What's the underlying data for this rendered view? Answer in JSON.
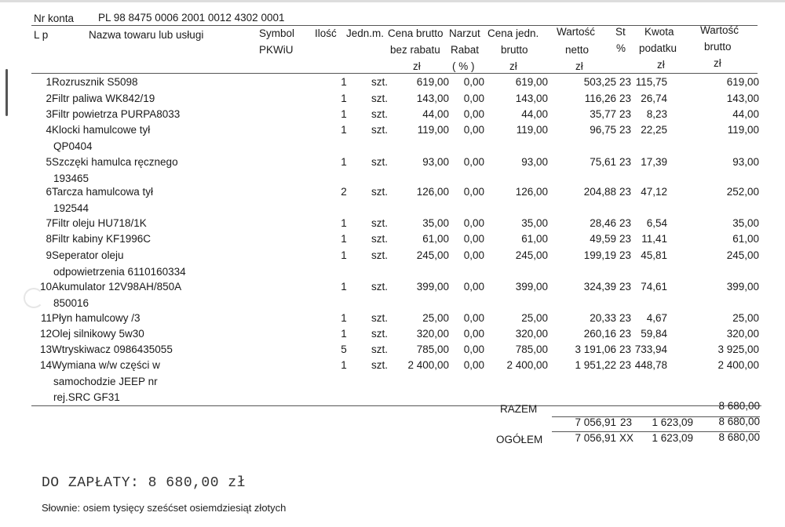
{
  "account": {
    "label": "Nr konta",
    "number": "PL 98 8475 0006 2001 0012 4302 0001"
  },
  "headers": {
    "lp": "L p",
    "name": "Nazwa towaru lub usługi",
    "symbol": [
      "Symbol",
      "PKWiU"
    ],
    "qty": "Ilość",
    "unit": "Jedn.m.",
    "gross_price": [
      "Cena brutto",
      "bez rabatu",
      "zł"
    ],
    "markup": [
      "Narzut",
      "Rabat",
      "( % )"
    ],
    "unit_price": [
      "Cena jedn.",
      "brutto",
      "zł"
    ],
    "net_value": [
      "Wartość",
      "netto",
      "zł"
    ],
    "vat_rate": [
      "St",
      "%"
    ],
    "tax_amount": [
      "Kwota",
      "podatku",
      "zł"
    ],
    "gross_value": [
      "Wartość",
      "brutto",
      "zł"
    ]
  },
  "items": [
    {
      "lp": "1",
      "name": [
        "Rozrusznik S5098"
      ],
      "qty": "1",
      "unit": "szt.",
      "gross_price": "619,00",
      "markup": "0,00",
      "unit_price": "619,00",
      "net": "503,25",
      "vat": "23",
      "tax": "115,75",
      "gross": "619,00"
    },
    {
      "lp": "2",
      "name": [
        "Filtr paliwa WK842/19"
      ],
      "qty": "1",
      "unit": "szt.",
      "gross_price": "143,00",
      "markup": "0,00",
      "unit_price": "143,00",
      "net": "116,26",
      "vat": "23",
      "tax": "26,74",
      "gross": "143,00"
    },
    {
      "lp": "3",
      "name": [
        "Filtr powietrza PURPA8033"
      ],
      "qty": "1",
      "unit": "szt.",
      "gross_price": "44,00",
      "markup": "0,00",
      "unit_price": "44,00",
      "net": "35,77",
      "vat": "23",
      "tax": "8,23",
      "gross": "44,00"
    },
    {
      "lp": "4",
      "name": [
        "Klocki hamulcowe tył",
        "QP0404"
      ],
      "qty": "1",
      "unit": "szt.",
      "gross_price": "119,00",
      "markup": "0,00",
      "unit_price": "119,00",
      "net": "96,75",
      "vat": "23",
      "tax": "22,25",
      "gross": "119,00"
    },
    {
      "lp": "5",
      "name": [
        "Szczęki hamulca ręcznego",
        "193465"
      ],
      "qty": "1",
      "unit": "szt.",
      "gross_price": "93,00",
      "markup": "0,00",
      "unit_price": "93,00",
      "net": "75,61",
      "vat": "23",
      "tax": "17,39",
      "gross": "93,00"
    },
    {
      "lp": "6",
      "name": [
        "Tarcza hamulcowa tył",
        "192544"
      ],
      "qty": "2",
      "unit": "szt.",
      "gross_price": "126,00",
      "markup": "0,00",
      "unit_price": "126,00",
      "net": "204,88",
      "vat": "23",
      "tax": "47,12",
      "gross": "252,00"
    },
    {
      "lp": "7",
      "name": [
        "Filtr oleju HU718/1K"
      ],
      "qty": "1",
      "unit": "szt.",
      "gross_price": "35,00",
      "markup": "0,00",
      "unit_price": "35,00",
      "net": "28,46",
      "vat": "23",
      "tax": "6,54",
      "gross": "35,00"
    },
    {
      "lp": "8",
      "name": [
        "Filtr kabiny KF1996C"
      ],
      "qty": "1",
      "unit": "szt.",
      "gross_price": "61,00",
      "markup": "0,00",
      "unit_price": "61,00",
      "net": "49,59",
      "vat": "23",
      "tax": "11,41",
      "gross": "61,00"
    },
    {
      "lp": "9",
      "name": [
        "Seperator oleju",
        "odpowietrzenia  6110160334"
      ],
      "qty": "1",
      "unit": "szt.",
      "gross_price": "245,00",
      "markup": "0,00",
      "unit_price": "245,00",
      "net": "199,19",
      "vat": "23",
      "tax": "45,81",
      "gross": "245,00"
    },
    {
      "lp": "10",
      "name": [
        "Akumulator 12V98AH/850A",
        "850016"
      ],
      "qty": "1",
      "unit": "szt.",
      "gross_price": "399,00",
      "markup": "0,00",
      "unit_price": "399,00",
      "net": "324,39",
      "vat": "23",
      "tax": "74,61",
      "gross": "399,00"
    },
    {
      "lp": "11",
      "name": [
        "Płyn hamulcowy /3"
      ],
      "qty": "1",
      "unit": "szt.",
      "gross_price": "25,00",
      "markup": "0,00",
      "unit_price": "25,00",
      "net": "20,33",
      "vat": "23",
      "tax": "4,67",
      "gross": "25,00"
    },
    {
      "lp": "12",
      "name": [
        "Olej silnikowy 5w30"
      ],
      "qty": "1",
      "unit": "szt.",
      "gross_price": "320,00",
      "markup": "0,00",
      "unit_price": "320,00",
      "net": "260,16",
      "vat": "23",
      "tax": "59,84",
      "gross": "320,00"
    },
    {
      "lp": "13",
      "name": [
        "Wtryskiwacz  0986435055"
      ],
      "qty": "5",
      "unit": "szt.",
      "gross_price": "785,00",
      "markup": "0,00",
      "unit_price": "785,00",
      "net": "3 191,06",
      "vat": "23",
      "tax": "733,94",
      "gross": "3 925,00"
    },
    {
      "lp": "14",
      "name": [
        "Wymiana w/w części w",
        "samochodzie JEEP nr",
        "rej.SRC GF31"
      ],
      "qty": "1",
      "unit": "szt.",
      "gross_price": "2 400,00",
      "markup": "0,00",
      "unit_price": "2 400,00",
      "net": "1 951,22",
      "vat": "23",
      "tax": "448,78",
      "gross": "2 400,00"
    }
  ],
  "summary": {
    "razem_label": "RAZEM",
    "razem_gross": "8 680,00",
    "rate_row": {
      "net": "7 056,91",
      "vat": "23",
      "tax": "1 623,09",
      "gross": "8 680,00"
    },
    "total_label": "OGÓŁEM",
    "total": {
      "net": "7 056,91",
      "vat": "XX",
      "tax": "1 623,09",
      "gross": "8 680,00"
    }
  },
  "payment": {
    "due": "DO ZAPŁATY: 8 680,00 zł",
    "in_words": "Słownie: osiem tysięcy sześćset osiemdziesiąt złotych"
  }
}
